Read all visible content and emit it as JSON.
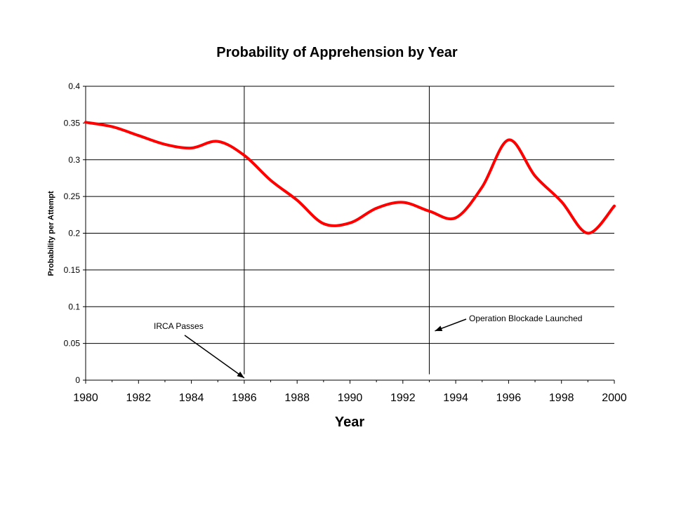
{
  "chart_data": {
    "type": "line",
    "title": "Probability of Apprehension by Year",
    "xlabel": "Year",
    "ylabel": "Probability per Attempt",
    "xlim": [
      1980,
      2000
    ],
    "ylim": [
      0,
      0.4
    ],
    "x_ticks": [
      "1980",
      "1982",
      "1984",
      "1986",
      "1988",
      "1990",
      "1992",
      "1994",
      "1996",
      "1998",
      "2000"
    ],
    "y_ticks": [
      "0",
      "0.05",
      "0.1",
      "0.15",
      "0.2",
      "0.25",
      "0.3",
      "0.35",
      "0.4"
    ],
    "grid": "horizontal",
    "legend": "none",
    "series": [
      {
        "color": "#ff0000",
        "x": [
          1980,
          1981,
          1982,
          1983,
          1984,
          1985,
          1986,
          1987,
          1988,
          1989,
          1990,
          1991,
          1992,
          1993,
          1994,
          1995,
          1996,
          1997,
          1998,
          1999,
          2000
        ],
        "y": [
          0.351,
          0.345,
          0.333,
          0.321,
          0.316,
          0.325,
          0.306,
          0.272,
          0.245,
          0.213,
          0.214,
          0.234,
          0.242,
          0.23,
          0.221,
          0.263,
          0.327,
          0.278,
          0.243,
          0.2,
          0.237
        ]
      }
    ],
    "vlines": [
      {
        "x": 1986
      },
      {
        "x": 1993
      }
    ],
    "annotations": [
      {
        "text": "IRCA Passes",
        "target_x": 1986,
        "target_y": 0.003
      },
      {
        "text": "Operation Blockade Launched",
        "target_x": 1993,
        "target_y": 0.067
      }
    ],
    "colors": {
      "line": "#ff0000",
      "grid": "#000000",
      "axis": "#000000"
    }
  }
}
